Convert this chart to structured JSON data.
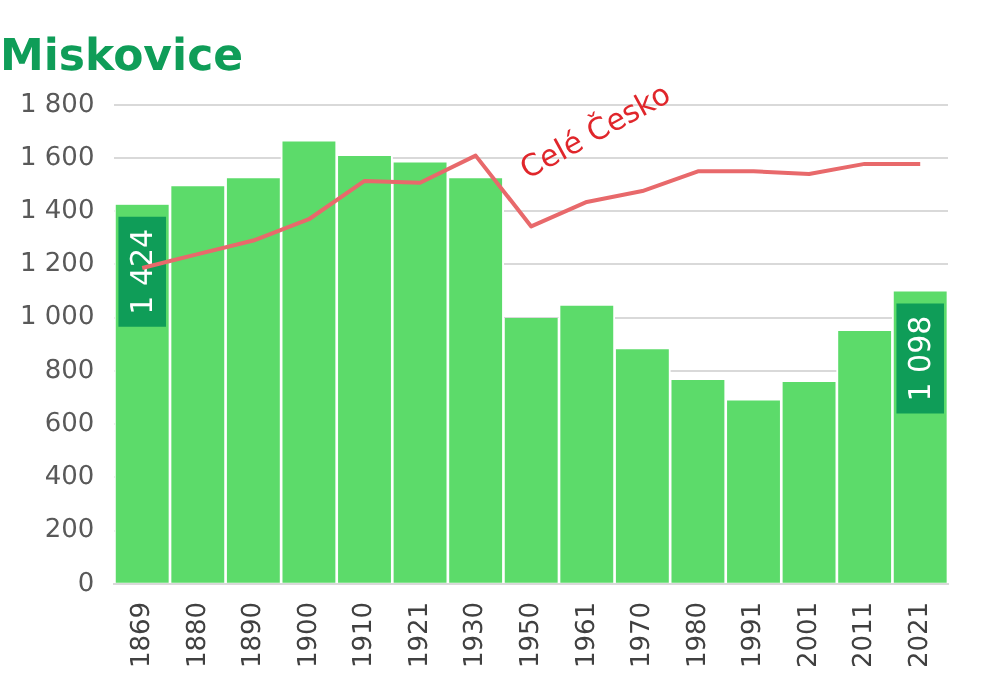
{
  "chart_data": {
    "type": "bar",
    "title": "Miskovice",
    "categories": [
      "1869",
      "1880",
      "1890",
      "1900",
      "1910",
      "1921",
      "1930",
      "1950",
      "1961",
      "1970",
      "1980",
      "1991",
      "2001",
      "2011",
      "2021"
    ],
    "series": [
      {
        "color": "#5cdb6a",
        "values": [
          1424,
          1494,
          1524,
          1662,
          1608,
          1583,
          1524,
          999,
          1045,
          881,
          766,
          689,
          758,
          950,
          1098
        ],
        "value_labels": [
          "1 424",
          null,
          null,
          null,
          null,
          null,
          null,
          null,
          null,
          null,
          null,
          null,
          null,
          null,
          "1 098"
        ]
      },
      {
        "type": "line",
        "name": "Celé Česko",
        "color": "#e8696b",
        "values": [
          1187,
          1239,
          1290,
          1370,
          1514,
          1507,
          1609,
          1343,
          1435,
          1476,
          1550,
          1550,
          1540,
          1578,
          1578
        ]
      }
    ],
    "ylim": [
      0,
      1800
    ],
    "yticks": [
      {
        "value": 0,
        "label": "0"
      },
      {
        "value": 200,
        "label": "200"
      },
      {
        "value": 400,
        "label": "400"
      },
      {
        "value": 600,
        "label": "600"
      },
      {
        "value": 800,
        "label": "800"
      },
      {
        "value": 1000,
        "label": "1 000"
      },
      {
        "value": 1200,
        "label": "1 200"
      },
      {
        "value": 1400,
        "label": "1 400"
      },
      {
        "value": 1600,
        "label": "1 600"
      },
      {
        "value": 1800,
        "label": "1 800"
      }
    ],
    "grid": "y",
    "legend": false,
    "marker": "none"
  }
}
